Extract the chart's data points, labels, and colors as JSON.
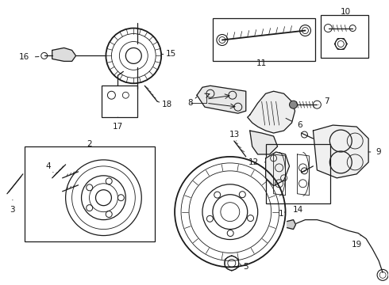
{
  "fig_width": 4.9,
  "fig_height": 3.6,
  "dpi": 100,
  "bg": "#ffffff",
  "lc": "#1a1a1a"
}
